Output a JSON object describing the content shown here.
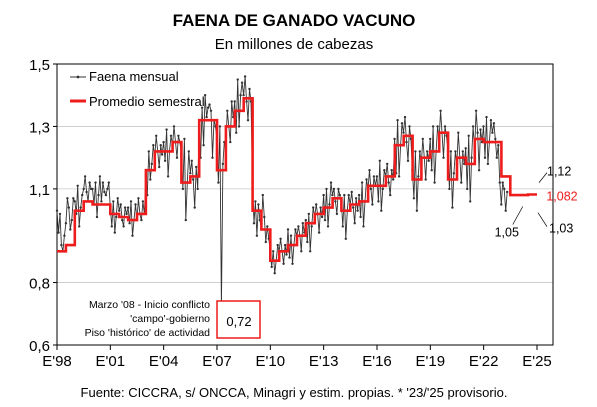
{
  "chart_data": {
    "type": "line",
    "title": "FAENA DE GANADO VACUNO",
    "subtitle": "En millones de cabezas",
    "xlabel": "",
    "ylabel": "",
    "ylim": [
      0.6,
      1.5
    ],
    "xlim": [
      1998,
      2025.9
    ],
    "yticks": [
      0.6,
      0.8,
      1.1,
      1.3,
      1.5
    ],
    "ytick_labels": [
      "0,6",
      "0,8",
      "1,1",
      "1,3",
      "1,5"
    ],
    "xticks": [
      1998,
      2001,
      2004,
      2007,
      2010,
      2013,
      2016,
      2019,
      2022,
      2025
    ],
    "xtick_labels": [
      "E'98",
      "E'01",
      "E'04",
      "E'07",
      "E'10",
      "E'13",
      "E'16",
      "E'19",
      "E'22",
      "E'25"
    ],
    "legend_position": "top-left",
    "colors": {
      "monthly": "#333333",
      "semester": "#ee1c1c",
      "accent_label": "#ee1c1c"
    },
    "series": [
      {
        "name": "Faena mensual",
        "style": "line-markers",
        "x_start": 1998.0,
        "step": 0.0833,
        "values": [
          1.03,
          0.96,
          1.02,
          0.92,
          0.9,
          0.95,
          0.99,
          1.07,
          1.04,
          0.97,
          1.0,
          1.07,
          1.06,
          1.02,
          1.11,
          0.98,
          1.04,
          1.08,
          1.1,
          1.14,
          1.09,
          1.06,
          1.12,
          1.1,
          1.1,
          1.05,
          1.12,
          1.01,
          1.08,
          1.14,
          1.06,
          1.12,
          1.09,
          1.08,
          1.1,
          1.12,
          1.04,
          0.98,
          1.06,
          0.96,
          1.01,
          1.07,
          1.03,
          1.05,
          1.0,
          0.98,
          1.04,
          1.02,
          1.04,
          0.99,
          1.06,
          0.95,
          1.0,
          1.05,
          1.0,
          1.07,
          1.02,
          1.0,
          1.06,
          1.02,
          1.14,
          1.08,
          1.22,
          1.13,
          1.18,
          1.24,
          1.2,
          1.27,
          1.22,
          1.17,
          1.24,
          1.21,
          1.25,
          1.19,
          1.29,
          1.14,
          1.22,
          1.27,
          1.24,
          1.3,
          1.25,
          1.2,
          1.27,
          1.25,
          1.21,
          1.1,
          1.26,
          1.0,
          1.12,
          1.22,
          1.15,
          1.19,
          1.13,
          1.04,
          1.17,
          1.1,
          1.3,
          1.2,
          1.36,
          1.24,
          1.4,
          1.33,
          1.36,
          1.37,
          1.35,
          1.2,
          1.32,
          1.3,
          1.26,
          1.12,
          1.3,
          0.72,
          1.18,
          1.25,
          1.24,
          1.35,
          1.3,
          1.25,
          1.38,
          1.33,
          1.38,
          1.28,
          1.45,
          1.3,
          1.4,
          1.44,
          1.4,
          1.46,
          1.38,
          1.32,
          1.42,
          1.38,
          1.12,
          0.99,
          1.06,
          0.95,
          1.05,
          1.0,
          0.97,
          1.08,
          1.01,
          0.93,
          0.98,
          0.94,
          0.9,
          0.85,
          0.9,
          0.83,
          0.87,
          0.92,
          0.9,
          0.94,
          0.9,
          0.86,
          0.92,
          0.89,
          0.97,
          0.88,
          0.95,
          0.86,
          0.92,
          0.97,
          0.95,
          0.98,
          0.95,
          0.9,
          0.99,
          0.96,
          1.0,
          0.93,
          1.02,
          0.9,
          0.98,
          1.04,
          1.01,
          1.05,
          1.02,
          0.96,
          1.04,
          1.01,
          1.08,
          1.0,
          1.1,
          0.98,
          1.05,
          1.12,
          1.08,
          1.1,
          1.06,
          1.02,
          1.1,
          1.08,
          1.06,
          0.98,
          1.08,
          0.94,
          1.03,
          1.08,
          1.05,
          1.09,
          1.04,
          0.99,
          1.07,
          1.03,
          1.08,
          1.01,
          1.12,
          0.98,
          1.06,
          1.13,
          1.1,
          1.16,
          1.1,
          1.05,
          1.14,
          1.11,
          1.14,
          1.06,
          1.19,
          1.03,
          1.1,
          1.16,
          1.14,
          1.18,
          1.12,
          1.08,
          1.16,
          1.13,
          1.26,
          1.15,
          1.32,
          1.14,
          1.24,
          1.31,
          1.28,
          1.33,
          1.25,
          1.19,
          1.3,
          1.26,
          1.16,
          1.07,
          1.22,
          1.03,
          1.14,
          1.22,
          1.18,
          1.26,
          1.2,
          1.13,
          1.22,
          1.19,
          1.26,
          1.16,
          1.3,
          1.12,
          1.22,
          1.3,
          1.26,
          1.35,
          1.28,
          1.2,
          1.3,
          1.27,
          1.22,
          1.1,
          1.22,
          1.04,
          1.15,
          1.22,
          1.18,
          1.28,
          1.2,
          1.12,
          1.22,
          1.18,
          1.23,
          1.1,
          1.27,
          1.06,
          1.2,
          1.3,
          1.22,
          1.35,
          1.28,
          1.16,
          1.29,
          1.25,
          1.3,
          1.2,
          1.33,
          1.18,
          1.25,
          1.32,
          1.28,
          1.31,
          1.26,
          1.2,
          1.24,
          1.12,
          1.05,
          1.12,
          1.1,
          1.03,
          1.09
        ]
      },
      {
        "name": "Promedio semestral",
        "style": "step",
        "steps": [
          [
            1998.0,
            1998.5,
            0.9
          ],
          [
            1998.5,
            1999.0,
            0.92
          ],
          [
            1999.0,
            1999.5,
            1.03
          ],
          [
            1999.5,
            2000.0,
            1.06
          ],
          [
            2000.0,
            2000.5,
            1.05
          ],
          [
            2000.5,
            2001.0,
            1.05
          ],
          [
            2001.0,
            2001.5,
            1.02
          ],
          [
            2001.5,
            2002.0,
            1.01
          ],
          [
            2002.0,
            2002.5,
            1.0
          ],
          [
            2002.5,
            2003.0,
            1.02
          ],
          [
            2003.0,
            2003.5,
            1.16
          ],
          [
            2003.5,
            2004.0,
            1.22
          ],
          [
            2004.0,
            2004.5,
            1.22
          ],
          [
            2004.5,
            2005.0,
            1.25
          ],
          [
            2005.0,
            2005.5,
            1.12
          ],
          [
            2005.5,
            2006.0,
            1.14
          ],
          [
            2006.0,
            2006.5,
            1.32
          ],
          [
            2006.5,
            2007.0,
            1.32
          ],
          [
            2007.0,
            2007.5,
            1.16
          ],
          [
            2007.5,
            2008.0,
            1.3
          ],
          [
            2008.0,
            2008.5,
            1.35
          ],
          [
            2008.5,
            2009.0,
            1.39
          ],
          [
            2009.0,
            2009.5,
            1.03
          ],
          [
            2009.5,
            2010.0,
            0.97
          ],
          [
            2010.0,
            2010.5,
            0.87
          ],
          [
            2010.5,
            2011.0,
            0.9
          ],
          [
            2011.0,
            2011.5,
            0.92
          ],
          [
            2011.5,
            2012.0,
            0.95
          ],
          [
            2012.0,
            2012.5,
            0.99
          ],
          [
            2012.5,
            2013.0,
            1.02
          ],
          [
            2013.0,
            2013.5,
            1.04
          ],
          [
            2013.5,
            2014.0,
            1.07
          ],
          [
            2014.0,
            2014.5,
            1.03
          ],
          [
            2014.5,
            2015.0,
            1.05
          ],
          [
            2015.0,
            2015.5,
            1.06
          ],
          [
            2015.5,
            2016.0,
            1.11
          ],
          [
            2016.0,
            2016.5,
            1.11
          ],
          [
            2016.5,
            2017.0,
            1.14
          ],
          [
            2017.0,
            2017.5,
            1.24
          ],
          [
            2017.5,
            2018.0,
            1.27
          ],
          [
            2018.0,
            2018.5,
            1.13
          ],
          [
            2018.5,
            2019.0,
            1.2
          ],
          [
            2019.0,
            2019.5,
            1.22
          ],
          [
            2019.5,
            2020.0,
            1.28
          ],
          [
            2020.0,
            2020.5,
            1.13
          ],
          [
            2020.5,
            2021.0,
            1.2
          ],
          [
            2021.0,
            2021.5,
            1.18
          ],
          [
            2021.5,
            2022.0,
            1.26
          ],
          [
            2022.0,
            2022.5,
            1.25
          ],
          [
            2022.5,
            2023.0,
            1.25
          ],
          [
            2023.0,
            2023.5,
            1.14
          ],
          [
            2023.5,
            2024.0,
            1.08
          ],
          [
            2024.0,
            2024.5,
            1.08
          ],
          [
            2024.5,
            2025.0,
            1.082
          ]
        ]
      }
    ],
    "annotations": [
      {
        "text": "1,12",
        "x": 2025.0,
        "y": 1.12,
        "color": "#000000"
      },
      {
        "text": "1,082",
        "x": 2025.3,
        "y": 1.082,
        "color": "#ee1c1c"
      },
      {
        "text": "1,05",
        "x": 2024.2,
        "y": 1.05,
        "color": "#000000"
      },
      {
        "text": "1,03",
        "x": 2025.0,
        "y": 1.03,
        "color": "#000000"
      }
    ],
    "callout": {
      "lines": [
        "Marzo '08 - Inicio conflicto",
        "'campo'-gobierno",
        "Piso 'histórico' de actividad"
      ],
      "value": "0,72",
      "x": 2008.2,
      "y": 0.72
    }
  },
  "source": "Fuente: CICCRA, s/ ONCCA, Minagri y estim. propias. * '23/'25 provisorio."
}
